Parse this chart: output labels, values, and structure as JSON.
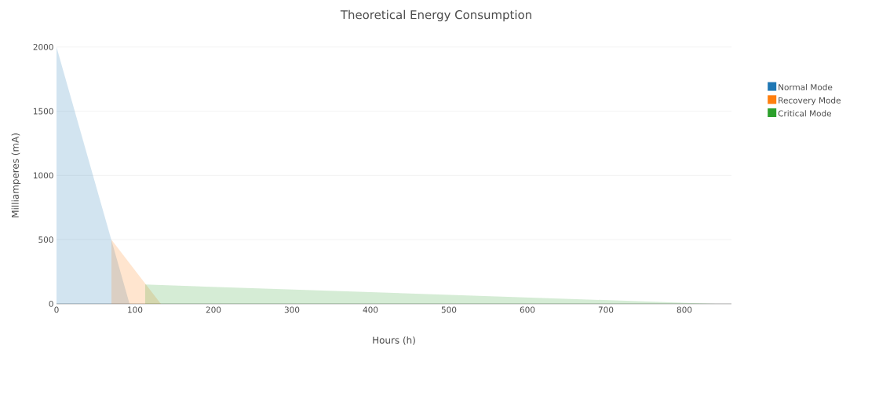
{
  "chart_data": {
    "type": "area",
    "title": "Theoretical Energy Consumption",
    "xlabel": "Hours (h)",
    "ylabel": "Milliamperes (mA)",
    "series": [
      {
        "name": "Normal Mode",
        "color": "#1f77b4",
        "x": [
          0,
          93
        ],
        "values": [
          2000,
          0
        ]
      },
      {
        "name": "Recovery Mode",
        "color": "#ff7f0e",
        "x": [
          70,
          133
        ],
        "values": [
          500,
          0
        ]
      },
      {
        "name": "Critical Mode",
        "color": "#2ca02c",
        "x": [
          113,
          840
        ],
        "values": [
          150,
          0
        ]
      }
    ],
    "xlim": [
      0,
      860
    ],
    "ylim": [
      0,
      2000
    ],
    "xticks": [
      0,
      100,
      200,
      300,
      400,
      500,
      600,
      700,
      800
    ],
    "yticks": [
      0,
      500,
      1000,
      1500,
      2000
    ],
    "grid": "y",
    "legend": "right"
  }
}
